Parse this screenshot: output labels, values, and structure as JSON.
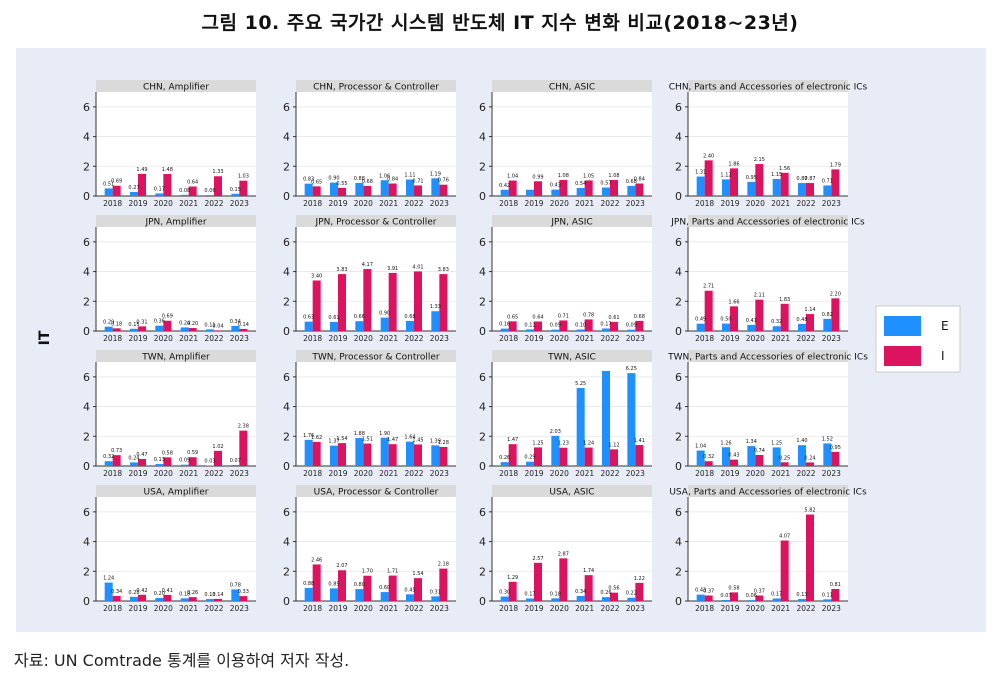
{
  "figure": {
    "title": "그림 10. 주요 국가간 시스템 반도체 IT 지수 변화 비교(2018~23년)",
    "source": "자료: UN Comtrade 통계를 이용하여 저자 작성."
  },
  "chart_data": {
    "type": "bar",
    "ylabel": "IT",
    "ylim": [
      0,
      7
    ],
    "yticks": [
      0,
      2,
      4,
      6
    ],
    "categories": [
      "2018",
      "2019",
      "2020",
      "2021",
      "2022",
      "2023"
    ],
    "legend": {
      "placement": "right",
      "items": [
        {
          "name": "E",
          "color": "#1e90ff"
        },
        {
          "name": "I",
          "color": "#dc1460"
        }
      ]
    },
    "panels": [
      {
        "title": "CHN, Amplifier",
        "E": [
          0.51,
          0.27,
          0.17,
          0.08,
          0.06,
          0.15
        ],
        "I": [
          0.69,
          1.49,
          1.48,
          0.64,
          1.33,
          1.03
        ],
        "E_labels": [
          "0.51",
          "0.27",
          "0.17",
          "0.08",
          "0.06",
          "0.15"
        ],
        "I_labels": [
          "0.69",
          "1.49",
          "1.48",
          "0.64",
          "1.33",
          "1.03"
        ]
      },
      {
        "title": "CHN, Processor & Controller",
        "E": [
          0.83,
          0.9,
          0.88,
          1.06,
          1.11,
          1.19
        ],
        "I": [
          0.65,
          0.55,
          0.68,
          0.84,
          0.71,
          0.76
        ],
        "E_labels": [
          "0.83",
          "0.90",
          "0.88",
          "1.06",
          "1.11",
          "1.19"
        ],
        "I_labels": [
          "0.65",
          "0.55",
          "0.68",
          "0.84",
          "0.71",
          "0.76"
        ]
      },
      {
        "title": "CHN, ASIC",
        "E": [
          0.42,
          0.42,
          0.43,
          0.54,
          0.57,
          0.68
        ],
        "I": [
          1.04,
          0.99,
          1.08,
          1.05,
          1.08,
          0.84
        ],
        "E_labels": [
          "0.42",
          "",
          "0.43",
          "0.54",
          "0.57",
          "0.68"
        ],
        "I_labels": [
          "1.04",
          "0.99",
          "1.08",
          "1.05",
          "1.08",
          "0.84"
        ]
      },
      {
        "title": "CHN, Parts and Accessories of electronic ICs",
        "E": [
          1.31,
          1.12,
          0.95,
          1.15,
          0.87,
          0.71
        ],
        "I": [
          2.4,
          1.86,
          2.15,
          1.56,
          0.87,
          1.79
        ],
        "E_labels": [
          "1.31",
          "1.12",
          "0.95",
          "1.15",
          "0.87",
          "0.71"
        ],
        "I_labels": [
          "2.40",
          "1.86",
          "2.15",
          "1.56",
          "0.87",
          "1.79"
        ]
      },
      {
        "title": "JPN,  Amplifier",
        "E": [
          0.29,
          0.15,
          0.36,
          0.24,
          0.11,
          0.34
        ],
        "I": [
          0.18,
          0.31,
          0.69,
          0.2,
          0.04,
          0.14
        ],
        "E_labels": [
          "0.29",
          "0.15",
          "0.36",
          "0.24",
          "0.11",
          "0.34"
        ],
        "I_labels": [
          "0.18",
          "0.31",
          "0.69",
          "0.20",
          "0.04",
          "0.14"
        ]
      },
      {
        "title": "JPN, Processor & Controller",
        "E": [
          0.63,
          0.61,
          0.66,
          0.9,
          0.68,
          1.33
        ],
        "I": [
          3.4,
          3.83,
          4.17,
          3.91,
          4.01,
          3.83
        ],
        "E_labels": [
          "0.63",
          "0.61",
          "0.66",
          "0.90",
          "0.68",
          "1.33"
        ],
        "I_labels": [
          "3.40",
          "3.83",
          "4.17",
          "3.91",
          "4.01",
          "3.83"
        ]
      },
      {
        "title": "JPN, ASIC",
        "E": [
          0.16,
          0.11,
          0.09,
          0.1,
          0.17,
          0.09
        ],
        "I": [
          0.65,
          0.64,
          0.71,
          0.78,
          0.61,
          0.68
        ],
        "E_labels": [
          "0.16",
          "0.11",
          "0.09",
          "0.10",
          "0.17",
          "0.09"
        ],
        "I_labels": [
          "0.65",
          "0.64",
          "0.71",
          "0.78",
          "0.61",
          "0.68"
        ]
      },
      {
        "title": "JPN, Parts and Accessories of electronic ICs",
        "E": [
          0.49,
          0.5,
          0.41,
          0.32,
          0.48,
          0.82
        ],
        "I": [
          2.71,
          1.66,
          2.11,
          1.83,
          1.14,
          2.2
        ],
        "E_labels": [
          "0.49",
          "0.50",
          "0.41",
          "0.32",
          "0.48",
          "0.82"
        ],
        "I_labels": [
          "2.71",
          "1.66",
          "2.11",
          "1.83",
          "1.14",
          "2.20"
        ]
      },
      {
        "title": "TWN,  Amplifier",
        "E": [
          0.32,
          0.24,
          0.13,
          0.09,
          0.03,
          0.07
        ],
        "I": [
          0.73,
          0.47,
          0.58,
          0.59,
          1.02,
          2.38
        ],
        "E_labels": [
          "0.32",
          "0.24",
          "0.13",
          "0.09",
          "0.03",
          "0.07"
        ],
        "I_labels": [
          "0.73",
          "0.47",
          "0.58",
          "0.59",
          "1.02",
          "2.38"
        ]
      },
      {
        "title": "TWN, Processor & Controller",
        "E": [
          1.76,
          1.37,
          1.88,
          1.9,
          1.64,
          1.39
        ],
        "I": [
          1.62,
          1.54,
          1.51,
          1.47,
          1.45,
          1.28
        ],
        "E_labels": [
          "1.76",
          "1.37",
          "1.88",
          "1.90",
          "1.64",
          "1.39"
        ],
        "I_labels": [
          "1.62",
          "1.54",
          "1.51",
          "1.47",
          "1.45",
          "1.28"
        ]
      },
      {
        "title": "TWN, ASIC",
        "E": [
          0.26,
          0.29,
          2.03,
          5.25,
          6.4,
          6.25
        ],
        "I": [
          1.47,
          1.25,
          1.23,
          1.24,
          1.12,
          1.41
        ],
        "E_labels": [
          "0.26",
          "0.29",
          "2.03",
          "5.25",
          "",
          "6.25"
        ],
        "I_labels": [
          "1.47",
          "1.25",
          "1.23",
          "1.24",
          "1.12",
          "1.41"
        ]
      },
      {
        "title": "TWN, Parts and Accessories of electronic ICs",
        "E": [
          1.04,
          1.26,
          1.34,
          1.25,
          1.4,
          1.52
        ],
        "I": [
          0.32,
          0.43,
          0.74,
          0.25,
          0.24,
          0.95
        ],
        "E_labels": [
          "1.04",
          "1.26",
          "1.34",
          "1.25",
          "1.40",
          "1.52"
        ],
        "I_labels": [
          "0.32",
          "0.43",
          "0.74",
          "0.25",
          "0.24",
          "0.95"
        ]
      },
      {
        "title": "USA,  Amplifier",
        "E": [
          1.24,
          0.28,
          0.2,
          0.18,
          0.13,
          0.78
        ],
        "I": [
          0.34,
          0.42,
          0.41,
          0.26,
          0.14,
          0.33
        ],
        "E_labels": [
          "1.24",
          "0.28",
          "0.20",
          "0.18",
          "0.13",
          "0.78"
        ],
        "I_labels": [
          "0.34",
          "0.42",
          "0.41",
          "0.26",
          "0.14",
          "0.33"
        ]
      },
      {
        "title": "USA, Processor & Controller",
        "E": [
          0.88,
          0.85,
          0.8,
          0.6,
          0.45,
          0.31
        ],
        "I": [
          2.46,
          2.07,
          1.7,
          1.71,
          1.54,
          2.18
        ],
        "E_labels": [
          "0.88",
          "0.85",
          "0.80",
          "0.60",
          "0.45",
          "0.31"
        ],
        "I_labels": [
          "2.46",
          "2.07",
          "1.70",
          "1.71",
          "1.54",
          "2.18"
        ]
      },
      {
        "title": "USA, ASIC",
        "E": [
          0.3,
          0.17,
          0.18,
          0.34,
          0.26,
          0.22
        ],
        "I": [
          1.29,
          2.57,
          2.87,
          1.74,
          0.56,
          1.22
        ],
        "E_labels": [
          "0.30",
          "0.17",
          "0.18",
          "0.34",
          "0.26",
          "0.22"
        ],
        "I_labels": [
          "1.29",
          "2.57",
          "2.87",
          "1.74",
          "0.56",
          "1.22"
        ]
      },
      {
        "title": "USA, Parts and Accessories of electronic ICs",
        "E": [
          0.43,
          0.07,
          0.06,
          0.17,
          0.13,
          0.11
        ],
        "I": [
          0.37,
          0.58,
          0.37,
          4.07,
          5.82,
          0.81
        ],
        "E_labels": [
          "0.43",
          "0.07",
          "0.06",
          "0.17",
          "0.13",
          "0.11"
        ],
        "I_labels": [
          "0.37",
          "0.58",
          "0.37",
          "4.07",
          "5.82",
          "0.81"
        ]
      }
    ]
  }
}
